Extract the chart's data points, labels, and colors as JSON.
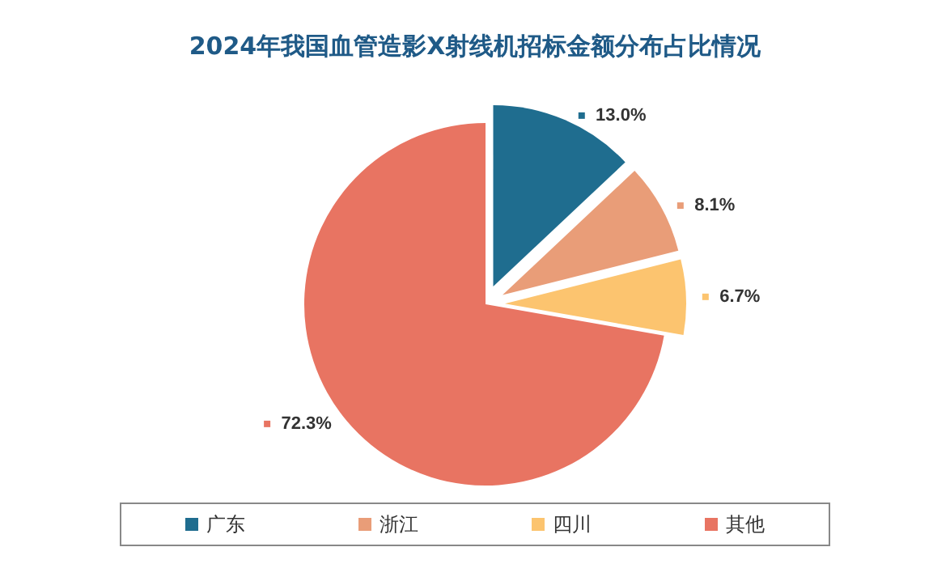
{
  "chart_data": {
    "type": "pie",
    "title": "2024年我国血管造影X射线机招标金额分布占比情况",
    "categories": [
      "广东",
      "浙江",
      "四川",
      "其他"
    ],
    "values": [
      13.0,
      8.1,
      6.7,
      72.3
    ],
    "value_labels": [
      "13.0%",
      "8.1%",
      "6.7%",
      "72.3%"
    ],
    "colors": [
      "#1f6d8f",
      "#e99d78",
      "#fcc46f",
      "#e87462"
    ],
    "legend": "bottom"
  }
}
